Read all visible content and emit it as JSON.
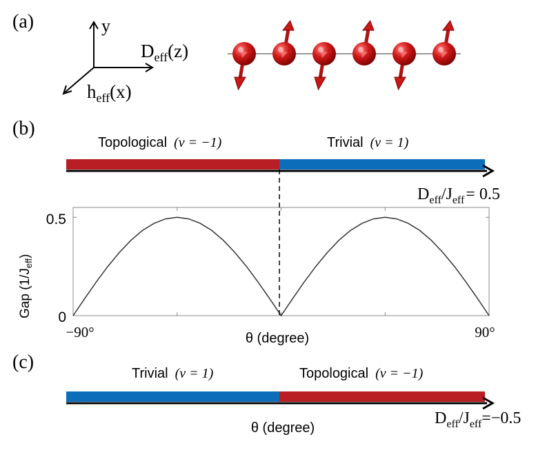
{
  "panel_a": {
    "label": "(a)",
    "axis_y": "y",
    "axis_z": {
      "base": "D",
      "sub": "eff",
      "tail": "(z)"
    },
    "axis_x": {
      "base": "h",
      "sub": "eff",
      "tail": "(x)"
    },
    "spins": [
      {
        "dir": "down"
      },
      {
        "dir": "up"
      },
      {
        "dir": "down"
      },
      {
        "dir": "up"
      },
      {
        "dir": "down"
      },
      {
        "dir": "up"
      }
    ]
  },
  "panel_b": {
    "label": "(b)",
    "left_phase": {
      "name": "Topological",
      "nu": "(ν = −1)"
    },
    "right_phase": {
      "name": "Trivial",
      "nu": "(ν = 1)"
    },
    "param": {
      "base": "D",
      "sub": "eff",
      "slash": "/J",
      "sub2": "eff",
      "eq": "= 0.5"
    }
  },
  "panel_c": {
    "label": "(c)",
    "left_phase": {
      "name": "Trivial",
      "nu": "(ν = 1)"
    },
    "right_phase": {
      "name": "Topological",
      "nu": "(ν = −1)"
    },
    "xlabel": "θ (degree)",
    "param": {
      "base": "D",
      "sub": "eff",
      "slash": "/J",
      "sub2": "eff",
      "eq": "=−0.5"
    }
  },
  "colors": {
    "topological": "#b81e23",
    "trivial": "#0c6dbb",
    "spin": "#cc1a1a",
    "curve": "#333333"
  },
  "chart_data": {
    "type": "line",
    "title": "",
    "xlabel": "θ (degree)",
    "ylabel": "Gap (1/J",
    "ylabel_sub": "eff",
    "ylabel_tail": ")",
    "xlim": [
      -90,
      90
    ],
    "ylim": [
      0,
      0.55
    ],
    "xtick_labels": [
      "−90°",
      "90°"
    ],
    "ytick_labels": [
      "0",
      "0.5"
    ],
    "series": [
      {
        "x": [
          -90,
          -85,
          -80,
          -75,
          -70,
          -65,
          -60,
          -55,
          -50,
          -45,
          -40,
          -35,
          -30,
          -25,
          -20,
          -15,
          -10,
          -5,
          0,
          5,
          10,
          15,
          20,
          25,
          30,
          35,
          40,
          45,
          50,
          55,
          60,
          65,
          70,
          75,
          80,
          85,
          90
        ],
        "y": [
          0.0,
          0.087,
          0.171,
          0.25,
          0.321,
          0.383,
          0.433,
          0.469,
          0.492,
          0.5,
          0.492,
          0.469,
          0.433,
          0.383,
          0.321,
          0.25,
          0.171,
          0.087,
          0.0,
          0.087,
          0.171,
          0.25,
          0.321,
          0.383,
          0.433,
          0.469,
          0.492,
          0.5,
          0.492,
          0.469,
          0.433,
          0.383,
          0.321,
          0.25,
          0.171,
          0.087,
          0.0
        ]
      }
    ],
    "grid": false
  }
}
